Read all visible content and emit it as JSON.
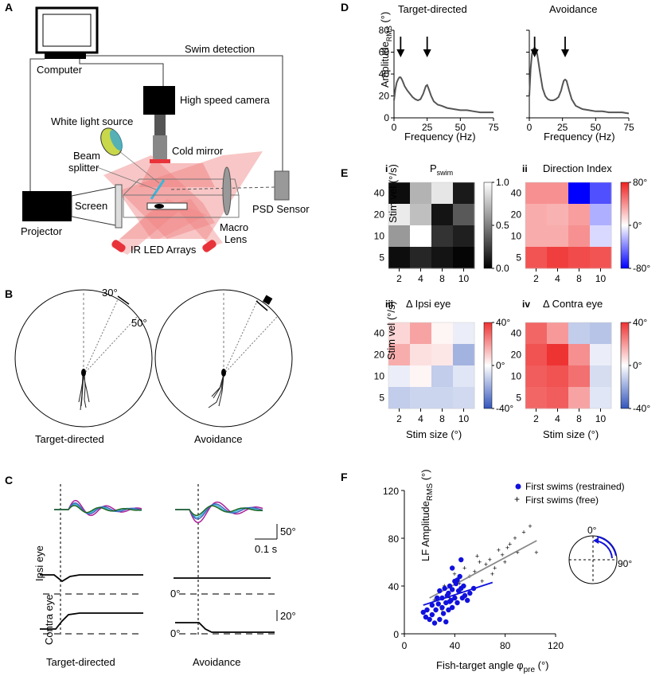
{
  "panels": {
    "A": "A",
    "B": "B",
    "C": "C",
    "D": "D",
    "E": "E",
    "F": "F"
  },
  "setup": {
    "computer": "Computer",
    "swim_detection": "Swim detection",
    "camera": "High speed camera",
    "white_light": "White light source",
    "beam": "Beam",
    "splitter": "splitter",
    "cold_mirror": "Cold mirror",
    "screen": "Screen",
    "projector": "Projector",
    "macro": "Macro",
    "lens": "Lens",
    "psd": "PSD Sensor",
    "ir": "IR LED Arrays"
  },
  "paradigm": {
    "a30": "30°",
    "a50": "50°",
    "target": "Target-directed",
    "avoid": "Avoidance"
  },
  "traces": {
    "scale_tail": "50°",
    "scale_time": "0.1 s",
    "scale_eye": "20°",
    "ipsi": "Ipsi eye",
    "contra": "Contra eye",
    "zero": "0°",
    "target": "Target-directed",
    "avoid": "Avoidance"
  },
  "spectra": {
    "title_target": "Target-directed",
    "title_avoid": "Avoidance",
    "ylabel_main": "Amplitude",
    "ylabel_sub": "RMS",
    "ylabel_unit": " (°)",
    "xlabel": "Frequency (Hz)",
    "xticks": [
      "0",
      "25",
      "50",
      "75"
    ],
    "yticks": [
      "0",
      "20",
      "40",
      "60",
      "80"
    ]
  },
  "heatmaps": {
    "i": "i",
    "ii": "ii",
    "iii": "iii",
    "iv": "iv",
    "t_i_main": "P",
    "t_i_sub": "swim",
    "t_ii": "Direction Index",
    "t_iii": "Δ Ipsi eye",
    "t_iv": "Δ Contra eye",
    "ylabel": "Stim vel (°/s)",
    "xlabel": "Stim size (°)",
    "rows": [
      "40",
      "20",
      "10",
      "5"
    ],
    "cols": [
      "2",
      "4",
      "8",
      "10"
    ],
    "cb_i": [
      "1.0",
      "0.5",
      "0.0"
    ],
    "cb_ii": [
      "80°",
      "0°",
      "-80°"
    ],
    "cb_eye": [
      "40°",
      "0°",
      "-40°"
    ]
  },
  "colors": {
    "restrained": "#1111dd",
    "free": "#888888",
    "laser": "#f08080",
    "ir": "#e8333a",
    "cyan": "#3ab6d8"
  },
  "chart_data": [
    {
      "type": "line",
      "title": "Target-directed",
      "xlabel": "Frequency (Hz)",
      "ylabel": "Amplitude RMS (°)",
      "xlim": [
        0,
        75
      ],
      "ylim": [
        0,
        80
      ],
      "series": [
        {
          "name": "Target-directed",
          "x": [
            0,
            1,
            2,
            3,
            4,
            5,
            6,
            7,
            8,
            10,
            12,
            14,
            16,
            18,
            20,
            22,
            24,
            25,
            26,
            28,
            30,
            33,
            36,
            40,
            45,
            50,
            55,
            60,
            65,
            70,
            75
          ],
          "values": [
            16,
            26,
            32,
            35,
            37,
            37,
            35,
            32,
            29,
            25,
            22,
            19,
            17,
            16,
            17,
            22,
            29,
            30,
            27,
            20,
            15,
            12,
            11,
            9,
            8,
            7,
            7,
            6,
            5,
            5,
            5
          ]
        }
      ],
      "arrows": [
        5,
        25
      ]
    },
    {
      "type": "line",
      "title": "Avoidance",
      "xlabel": "Frequency (Hz)",
      "ylabel": "Amplitude RMS (°)",
      "xlim": [
        0,
        75
      ],
      "ylim": [
        0,
        80
      ],
      "series": [
        {
          "name": "Avoidance",
          "x": [
            0,
            1,
            2,
            3,
            4,
            5,
            6,
            8,
            10,
            12,
            14,
            16,
            18,
            20,
            22,
            24,
            25,
            26,
            27,
            28,
            30,
            32,
            35,
            40,
            45,
            50,
            55,
            60,
            65,
            70,
            75
          ],
          "values": [
            20,
            45,
            58,
            63,
            64,
            63,
            58,
            42,
            27,
            20,
            17,
            16,
            16,
            17,
            19,
            25,
            30,
            34,
            35,
            34,
            25,
            17,
            11,
            8,
            7,
            6,
            6,
            5,
            5,
            5,
            4
          ]
        }
      ],
      "arrows": [
        4,
        27
      ]
    },
    {
      "type": "heatmap",
      "title": "P swim",
      "x": [
        "2",
        "4",
        "8",
        "10"
      ],
      "y": [
        "40",
        "20",
        "10",
        "5"
      ],
      "range": [
        0,
        1
      ],
      "values": [
        [
          0.05,
          0.7,
          0.9,
          0.1
        ],
        [
          0.92,
          0.75,
          0.08,
          0.35
        ],
        [
          0.6,
          1.0,
          0.2,
          0.12
        ],
        [
          0.05,
          0.15,
          0.08,
          0.02
        ]
      ]
    },
    {
      "type": "heatmap",
      "title": "Direction Index",
      "x": [
        "2",
        "4",
        "8",
        "10"
      ],
      "y": [
        "40",
        "20",
        "10",
        "5"
      ],
      "range": [
        -80,
        80
      ],
      "values": [
        [
          40,
          40,
          -80,
          -55
        ],
        [
          30,
          28,
          35,
          -25
        ],
        [
          30,
          30,
          40,
          -12
        ],
        [
          62,
          70,
          65,
          62
        ]
      ]
    },
    {
      "type": "heatmap",
      "title": "Δ Ipsi eye",
      "x": [
        "2",
        "4",
        "8",
        "10"
      ],
      "y": [
        "40",
        "20",
        "10",
        "5"
      ],
      "range": [
        -40,
        40
      ],
      "values": [
        [
          8,
          18,
          2,
          -4
        ],
        [
          16,
          6,
          5,
          -18
        ],
        [
          -4,
          2,
          -12,
          -6
        ],
        [
          -12,
          -10,
          -10,
          -9
        ]
      ]
    },
    {
      "type": "heatmap",
      "title": "Δ Contra eye",
      "x": [
        "2",
        "4",
        "8",
        "10"
      ],
      "y": [
        "40",
        "20",
        "10",
        "5"
      ],
      "range": [
        -40,
        40
      ],
      "values": [
        [
          30,
          20,
          -12,
          -14
        ],
        [
          34,
          40,
          22,
          -4
        ],
        [
          32,
          34,
          28,
          -8
        ],
        [
          30,
          32,
          18,
          -6
        ]
      ]
    },
    {
      "type": "scatter",
      "xlabel": "Fish-target angle φpre (°)",
      "ylabel": "LF Amplitude RMS (°)",
      "xlim": [
        0,
        120
      ],
      "ylim": [
        0,
        120
      ],
      "xticks": [
        "0",
        "40",
        "80",
        "120"
      ],
      "yticks": [
        "0",
        "40",
        "80",
        "120"
      ],
      "legend": [
        "First swims (restrained)",
        "First swims (free)"
      ],
      "angle_0": "0°",
      "angle_90": "90°",
      "series": [
        {
          "name": "First swims (restrained)",
          "x": [
            15,
            17,
            18,
            20,
            22,
            22,
            25,
            26,
            27,
            28,
            30,
            30,
            31,
            32,
            33,
            34,
            35,
            35,
            36,
            37,
            38,
            38,
            40,
            40,
            41,
            42,
            43,
            44,
            45,
            45,
            46,
            47,
            48,
            50,
            52,
            55,
            38,
            33,
            28,
            24,
            42,
            36
          ],
          "y": [
            18,
            14,
            20,
            12,
            16,
            24,
            20,
            30,
            25,
            36,
            22,
            30,
            17,
            38,
            26,
            32,
            34,
            20,
            40,
            28,
            37,
            22,
            44,
            30,
            42,
            26,
            36,
            48,
            62,
            38,
            30,
            40,
            32,
            28,
            34,
            38,
            55,
            10,
            12,
            9,
            45,
            27
          ],
          "fit": [
            [
              15,
              24
            ],
            [
              70,
              43
            ]
          ]
        },
        {
          "name": "First swims (free)",
          "x": [
            20,
            24,
            28,
            32,
            36,
            40,
            44,
            48,
            52,
            56,
            60,
            62,
            65,
            68,
            72,
            75,
            78,
            80,
            84,
            88,
            90,
            95,
            100,
            105,
            30,
            45,
            58,
            70,
            82
          ],
          "y": [
            12,
            28,
            35,
            40,
            30,
            50,
            42,
            55,
            48,
            52,
            60,
            44,
            58,
            62,
            55,
            70,
            66,
            60,
            75,
            80,
            68,
            85,
            90,
            68,
            20,
            35,
            65,
            50,
            72
          ],
          "fit": [
            [
              20,
              30
            ],
            [
              105,
              78
            ]
          ]
        }
      ]
    }
  ]
}
